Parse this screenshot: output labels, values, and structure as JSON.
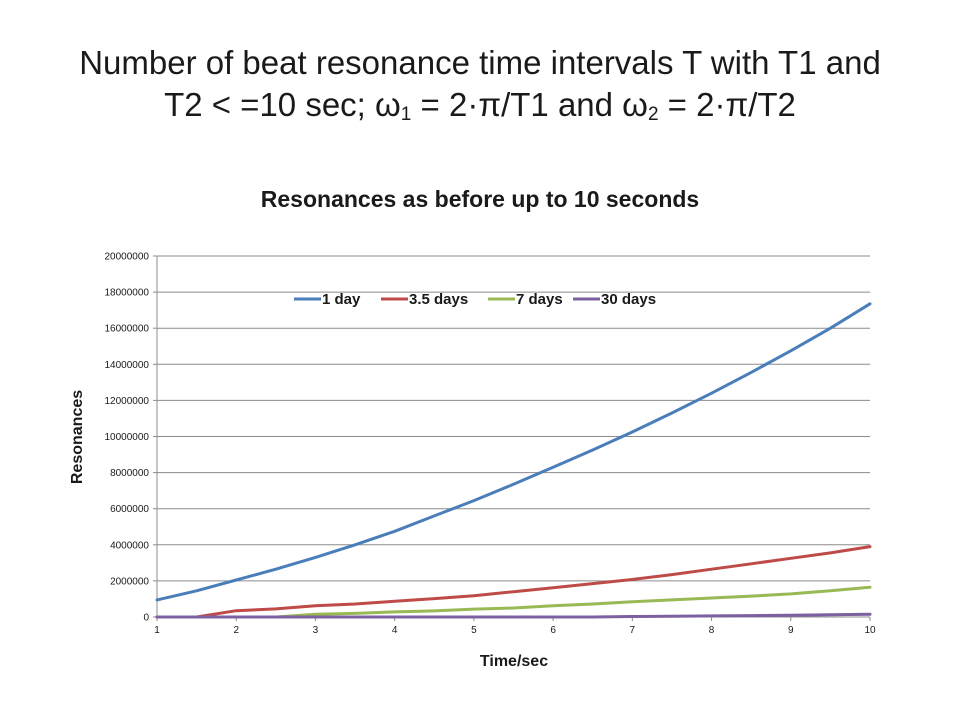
{
  "slide": {
    "title_line1": "Number of beat resonance time intervals T with T1 and",
    "title_line2_pre": "T2  < =10 sec; ω",
    "title_sub1": "1",
    "title_mid": " =  2·π/T1 and ω",
    "title_sub2": "2",
    "title_post": " =  2·π/T2"
  },
  "chart_data": {
    "type": "line",
    "title": "Resonances as before up to 10 seconds",
    "xlabel": "Time/sec",
    "ylabel": "Resonances",
    "xlim": [
      1,
      10
    ],
    "ylim": [
      0,
      20000000
    ],
    "x_ticks": [
      1,
      2,
      3,
      4,
      5,
      6,
      7,
      8,
      9,
      10
    ],
    "y_ticks": [
      0,
      2000000,
      4000000,
      6000000,
      8000000,
      10000000,
      12000000,
      14000000,
      16000000,
      18000000,
      20000000
    ],
    "grid": "horizontal",
    "legend_position": "top-center",
    "x": [
      1,
      1.5,
      2,
      2.5,
      3,
      3.5,
      4,
      4.5,
      5,
      5.5,
      6,
      6.5,
      7,
      7.5,
      8,
      8.5,
      9,
      9.5,
      10
    ],
    "series": [
      {
        "name": "1 day",
        "color": "#4a7ebb",
        "values": [
          950000,
          1450000,
          2050000,
          2650000,
          3300000,
          4000000,
          4750000,
          5600000,
          6450000,
          7350000,
          8300000,
          9250000,
          10250000,
          11300000,
          12400000,
          13550000,
          14750000,
          16000000,
          17350000
        ]
      },
      {
        "name": "3.5 days",
        "color": "#be4b48",
        "values": [
          0,
          0,
          350000,
          450000,
          620000,
          720000,
          870000,
          1020000,
          1180000,
          1400000,
          1620000,
          1850000,
          2080000,
          2350000,
          2650000,
          2950000,
          3250000,
          3550000,
          3900000
        ]
      },
      {
        "name": "7 days",
        "color": "#98b954",
        "values": [
          0,
          0,
          0,
          0,
          150000,
          200000,
          280000,
          340000,
          440000,
          500000,
          620000,
          720000,
          840000,
          950000,
          1050000,
          1160000,
          1280000,
          1450000,
          1650000
        ]
      },
      {
        "name": "30 days",
        "color": "#7d60a0",
        "values": [
          0,
          0,
          0,
          0,
          0,
          0,
          0,
          0,
          0,
          0,
          0,
          0,
          30000,
          40000,
          60000,
          80000,
          100000,
          120000,
          150000
        ]
      }
    ]
  }
}
